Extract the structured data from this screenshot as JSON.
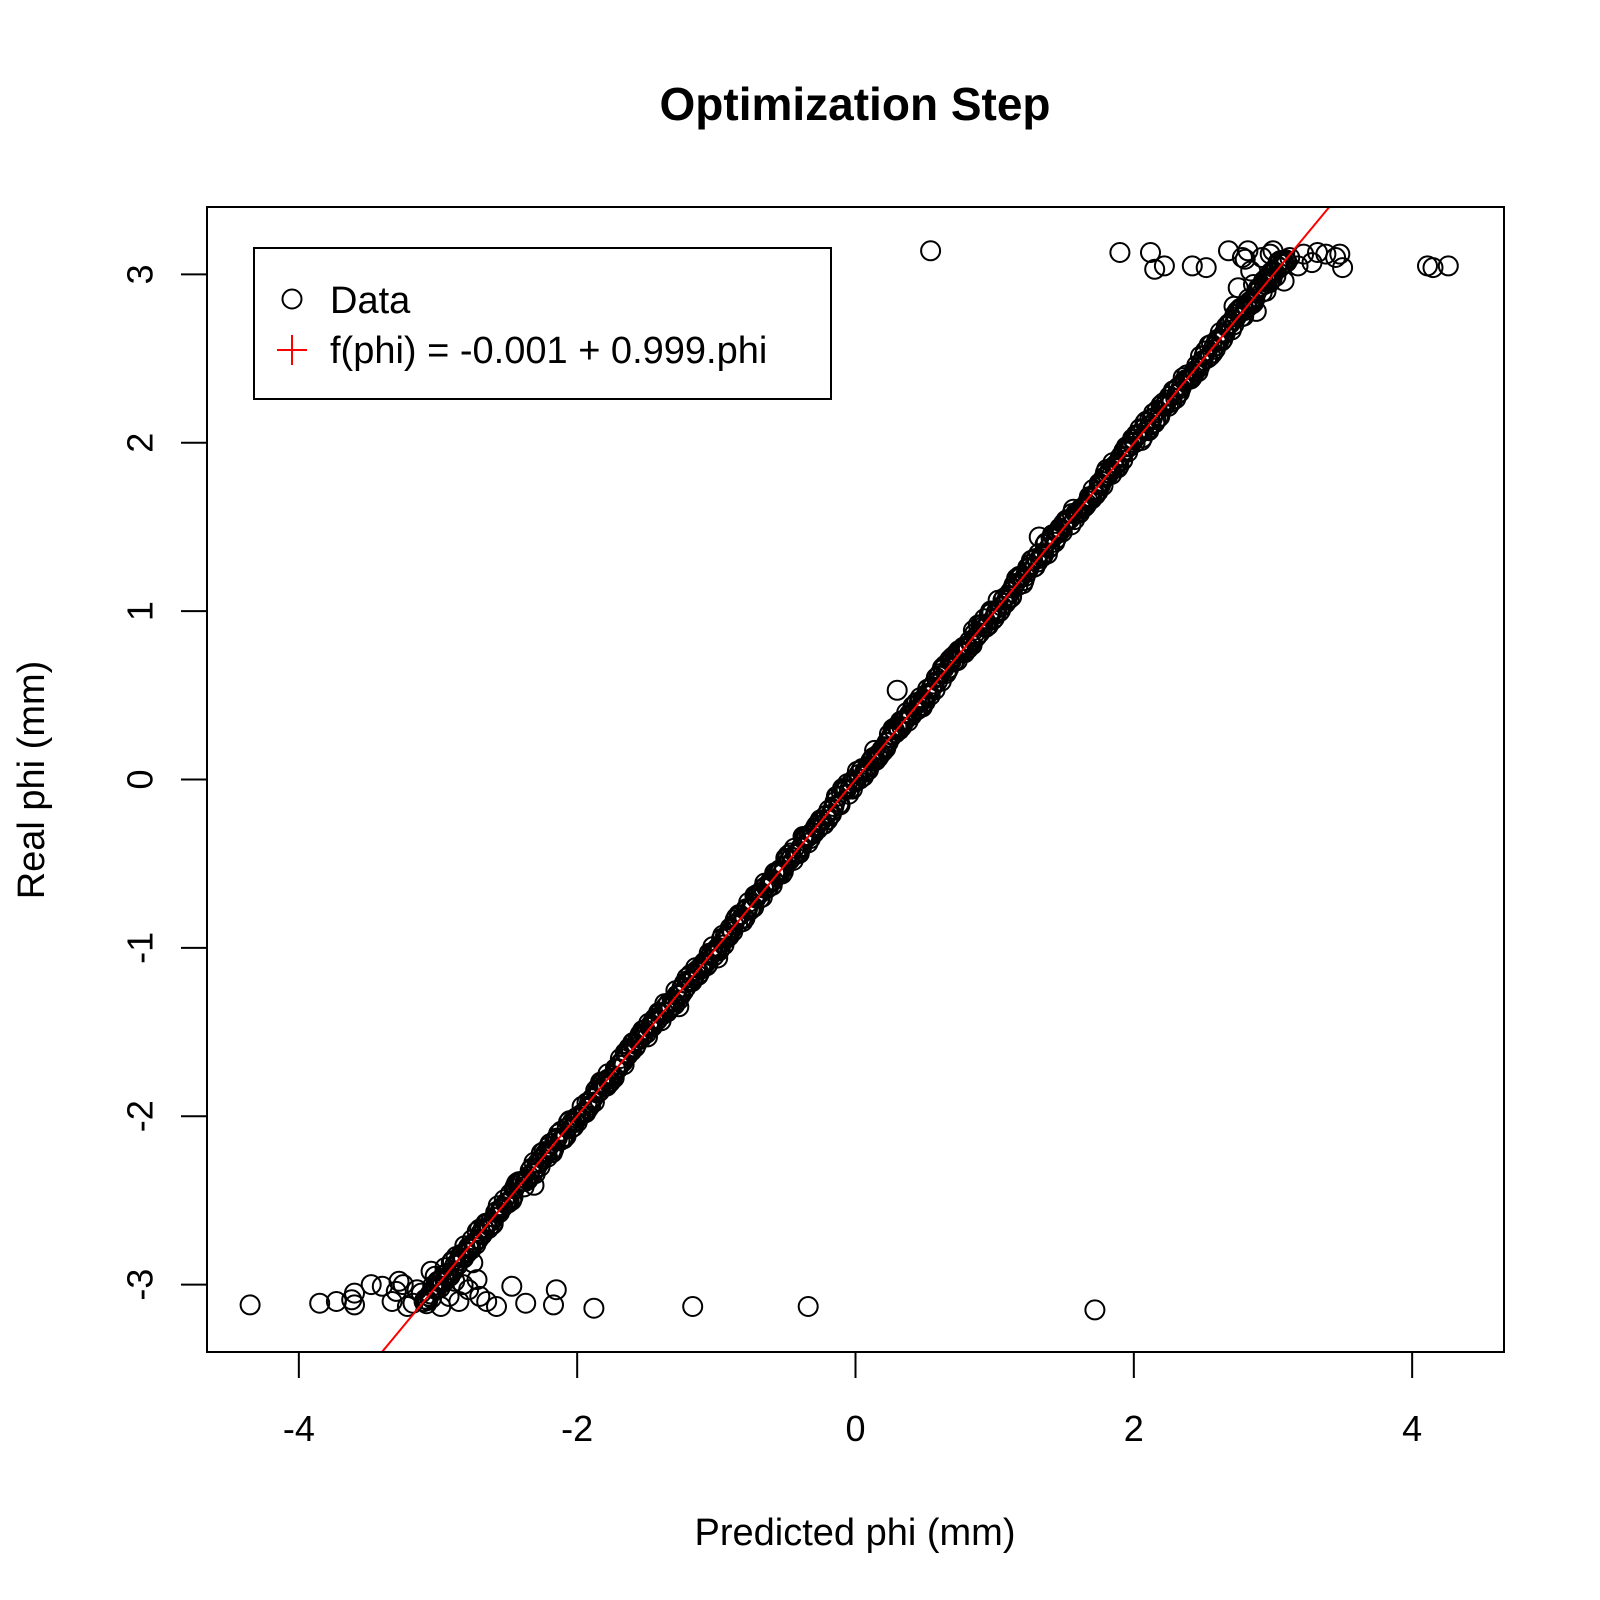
{
  "chart_data": {
    "type": "scatter",
    "title": "Optimization Step",
    "xlabel": "Predicted phi (mm)",
    "ylabel": "Real phi (mm)",
    "xlim": [
      -4.66,
      4.66
    ],
    "ylim": [
      -3.4,
      3.4
    ],
    "x_ticks": [
      -4,
      -2,
      0,
      2,
      4
    ],
    "y_ticks": [
      -3,
      -2,
      -1,
      0,
      1,
      2,
      3
    ],
    "x_tick_labels": [
      "-4",
      "-2",
      "0",
      "2",
      "4"
    ],
    "y_tick_labels": [
      "-3",
      "-2",
      "-1",
      "0",
      "1",
      "2",
      "3"
    ],
    "grid": false,
    "legend_position": "top-left",
    "series": [
      {
        "name": "Data",
        "marker": "open-circle",
        "color": "#000000",
        "dense_band": {
          "x_from": -3.1,
          "x_to": 3.1,
          "intercept": 0.0,
          "slope": 1.0,
          "spread": 0.04
        },
        "points": [
          [
            -4.35,
            -3.12
          ],
          [
            -3.85,
            -3.11
          ],
          [
            -3.73,
            -3.1
          ],
          [
            -3.6,
            -3.05
          ],
          [
            -3.6,
            -3.12
          ],
          [
            -3.62,
            -3.09
          ],
          [
            -3.48,
            -3.0
          ],
          [
            -3.4,
            -3.01
          ],
          [
            -3.33,
            -3.1
          ],
          [
            -3.3,
            -3.04
          ],
          [
            -3.28,
            -2.98
          ],
          [
            -3.25,
            -3.0
          ],
          [
            -3.22,
            -3.13
          ],
          [
            -3.18,
            -3.11
          ],
          [
            -3.15,
            -3.03
          ],
          [
            -3.12,
            -3.05
          ],
          [
            -3.08,
            -3.09
          ],
          [
            -3.05,
            -2.92
          ],
          [
            -3.02,
            -2.95
          ],
          [
            -2.98,
            -3.13
          ],
          [
            -2.95,
            -2.9
          ],
          [
            -2.92,
            -3.07
          ],
          [
            -2.88,
            -2.98
          ],
          [
            -2.85,
            -3.1
          ],
          [
            -2.82,
            -3.0
          ],
          [
            -2.78,
            -3.03
          ],
          [
            -2.75,
            -2.87
          ],
          [
            -2.72,
            -2.97
          ],
          [
            -2.7,
            -3.07
          ],
          [
            -2.65,
            -3.1
          ],
          [
            -2.58,
            -3.13
          ],
          [
            -2.47,
            -3.01
          ],
          [
            -2.37,
            -3.11
          ],
          [
            -2.31,
            -2.41
          ],
          [
            -2.17,
            -3.12
          ],
          [
            -2.15,
            -3.03
          ],
          [
            -1.88,
            -3.14
          ],
          [
            -1.78,
            -1.78
          ],
          [
            -1.27,
            -1.35
          ],
          [
            -1.17,
            -3.13
          ],
          [
            -0.99,
            -1.06
          ],
          [
            -0.34,
            -3.13
          ],
          [
            0.3,
            0.53
          ],
          [
            0.48,
            0.43
          ],
          [
            0.54,
            3.14
          ],
          [
            1.32,
            1.44
          ],
          [
            1.72,
            -3.15
          ],
          [
            1.9,
            3.13
          ],
          [
            2.12,
            3.13
          ],
          [
            2.15,
            3.03
          ],
          [
            2.22,
            3.05
          ],
          [
            2.42,
            3.05
          ],
          [
            2.52,
            3.04
          ],
          [
            2.68,
            3.14
          ],
          [
            2.72,
            2.81
          ],
          [
            2.75,
            2.92
          ],
          [
            2.78,
            3.1
          ],
          [
            2.8,
            3.09
          ],
          [
            2.82,
            3.14
          ],
          [
            2.84,
            3.02
          ],
          [
            2.86,
            2.94
          ],
          [
            2.88,
            2.78
          ],
          [
            2.92,
            3.1
          ],
          [
            2.95,
            2.9
          ],
          [
            2.98,
            3.12
          ],
          [
            3.0,
            3.14
          ],
          [
            3.05,
            3.08
          ],
          [
            3.08,
            2.96
          ],
          [
            3.12,
            3.1
          ],
          [
            3.18,
            3.05
          ],
          [
            3.22,
            3.12
          ],
          [
            3.28,
            3.07
          ],
          [
            3.32,
            3.13
          ],
          [
            3.38,
            3.12
          ],
          [
            3.45,
            3.1
          ],
          [
            3.48,
            3.12
          ],
          [
            3.5,
            3.04
          ],
          [
            4.11,
            3.05
          ],
          [
            4.15,
            3.04
          ],
          [
            4.26,
            3.05
          ]
        ]
      },
      {
        "name": "f(phi) = -0.001 + 0.999.phi",
        "marker": "line",
        "color": "#ff0000",
        "intercept": -0.001,
        "slope": 0.999
      }
    ]
  }
}
